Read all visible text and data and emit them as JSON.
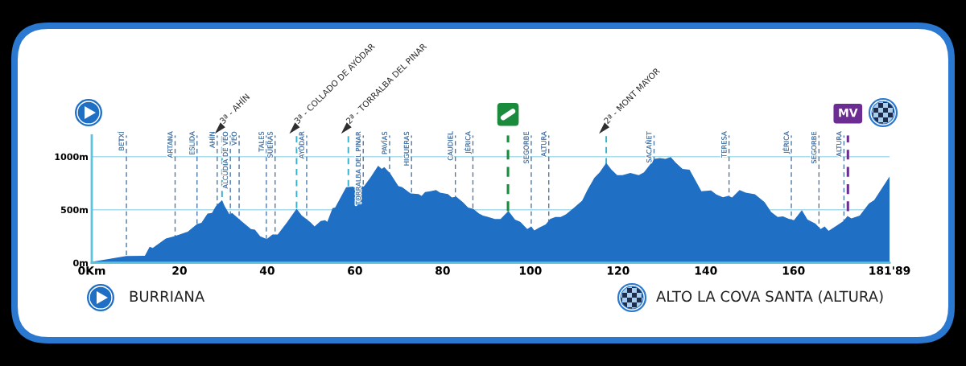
{
  "chart_data": {
    "type": "area",
    "color": "#1f6fc5",
    "x": [
      0,
      7.9,
      12.1,
      13.2,
      13.9,
      16.9,
      18.8,
      21.9,
      24.0,
      25.0,
      26.4,
      27.4,
      28.3,
      29.7,
      30.3,
      31.4,
      32.0,
      34.1,
      36.3,
      37.2,
      38.4,
      39.9,
      41.2,
      42.4,
      44.5,
      46.7,
      47.9,
      49.1,
      49.9,
      50.8,
      52.2,
      53.2,
      53.7,
      54.9,
      55.5,
      58.0,
      59.5,
      60.1,
      61.0,
      62.0,
      63.5,
      65.3,
      66.1,
      66.7,
      68.1,
      69.9,
      70.8,
      72.7,
      74.5,
      75.2,
      76.0,
      77.2,
      78.5,
      79.4,
      81.2,
      82.1,
      83.1,
      84.6,
      85.8,
      87.0,
      88.3,
      89.2,
      90.4,
      91.9,
      93.2,
      95.0,
      96.5,
      97.7,
      99.3,
      100.2,
      100.9,
      102.0,
      103.5,
      104.5,
      105.7,
      106.9,
      108.1,
      110.0,
      111.8,
      113.0,
      114.6,
      115.8,
      117.3,
      118.5,
      119.8,
      121.0,
      122.8,
      124.7,
      125.9,
      128.3,
      129.5,
      130.8,
      132.0,
      133.2,
      134.7,
      136.3,
      139.0,
      141.2,
      142.4,
      143.9,
      145.1,
      146.0,
      147.7,
      149.1,
      151.2,
      153.4,
      154.9,
      156.4,
      157.6,
      158.9,
      160.1,
      161.9,
      163.2,
      165.0,
      166.2,
      167.1,
      168.0,
      169.9,
      171.4,
      172.3,
      173.2,
      175.1,
      177.2,
      178.4,
      181.89
    ],
    "values": [
      10,
      64,
      66,
      152,
      140,
      229,
      249,
      293,
      366,
      376,
      463,
      470,
      534,
      590,
      534,
      457,
      470,
      394,
      318,
      313,
      249,
      224,
      267,
      267,
      381,
      510,
      445,
      407,
      381,
      343,
      394,
      402,
      386,
      514,
      521,
      712,
      717,
      707,
      729,
      717,
      800,
      915,
      884,
      902,
      838,
      724,
      712,
      653,
      648,
      630,
      666,
      674,
      686,
      661,
      648,
      615,
      623,
      572,
      521,
      508,
      463,
      445,
      432,
      412,
      412,
      488,
      407,
      386,
      318,
      343,
      305,
      331,
      361,
      412,
      432,
      432,
      457,
      521,
      585,
      686,
      800,
      851,
      941,
      877,
      826,
      826,
      846,
      826,
      851,
      979,
      986,
      979,
      996,
      941,
      884,
      877,
      674,
      681,
      643,
      617,
      630,
      615,
      686,
      661,
      646,
      572,
      478,
      432,
      437,
      415,
      402,
      495,
      407,
      369,
      318,
      343,
      300,
      351,
      394,
      440,
      419,
      445,
      559,
      590,
      813
    ],
    "xlim": [
      0,
      181.89
    ],
    "ylim": [
      0,
      1200
    ],
    "xticks": [
      {
        "value": 0,
        "label": "0Km"
      },
      20,
      40,
      60,
      80,
      100,
      120,
      140,
      160,
      {
        "value": 181.89,
        "label": "181'89"
      }
    ],
    "yticks": [
      {
        "value": 0,
        "label": "0m"
      },
      {
        "value": 500,
        "label": "500m"
      },
      {
        "value": 1000,
        "label": "1000m"
      }
    ],
    "grid": "y",
    "ref_lines": [
      {
        "axis": "x",
        "value": 7.9,
        "label": "BETXÍ",
        "color": "#4d79a8",
        "line_style": "dashed"
      },
      {
        "axis": "x",
        "value": 19.0,
        "label": "ARTANA",
        "color": "#4d79a8",
        "line_style": "dashed"
      },
      {
        "axis": "x",
        "value": 24.0,
        "label": "ESLIDA",
        "color": "#4d79a8",
        "line_style": "dashed"
      },
      {
        "axis": "x",
        "value": 28.6,
        "label": "AHÍN",
        "color": "#4d79a8",
        "line_style": "dashed"
      },
      {
        "axis": "x",
        "value": 29.7,
        "label": "3ª - AHÍN",
        "color": "#38b2c9",
        "line_style": "dashed"
      },
      {
        "axis": "x",
        "value": 31.6,
        "label": "ALCUDIA DE VEO",
        "color": "#4d79a8",
        "line_style": "dashed"
      },
      {
        "axis": "x",
        "value": 33.6,
        "label": "VEO",
        "color": "#4d79a8",
        "line_style": "dashed"
      },
      {
        "axis": "x",
        "value": 39.8,
        "label": "TALES",
        "color": "#4d79a8",
        "line_style": "dashed"
      },
      {
        "axis": "x",
        "value": 41.8,
        "label": "SUERAS",
        "color": "#4d79a8",
        "line_style": "dashed"
      },
      {
        "axis": "x",
        "value": 46.7,
        "label": "3ª - COLLADO DE AYÓDAR",
        "color": "#38b2c9",
        "line_style": "dashed"
      },
      {
        "axis": "x",
        "value": 49.0,
        "label": "AYÓDAR",
        "color": "#4d79a8",
        "line_style": "dashed"
      },
      {
        "axis": "x",
        "value": 58.5,
        "label": "2ª - TORRALBA DEL PINAR",
        "color": "#38b2c9",
        "line_style": "dashed"
      },
      {
        "axis": "x",
        "value": 61.9,
        "label": "TORRALBA DEL PINAR",
        "color": "#4d79a8",
        "line_style": "dashed"
      },
      {
        "axis": "x",
        "value": 67.9,
        "label": "PAVÍAS",
        "color": "#4d79a8",
        "line_style": "dashed"
      },
      {
        "axis": "x",
        "value": 72.9,
        "label": "HIGUERAS",
        "color": "#4d79a8",
        "line_style": "dashed"
      },
      {
        "axis": "x",
        "value": 82.9,
        "label": "CAUDIEL",
        "color": "#4d79a8",
        "line_style": "dashed"
      },
      {
        "axis": "x",
        "value": 86.9,
        "label": "JÉRICA",
        "color": "#4d79a8",
        "line_style": "dashed"
      },
      {
        "axis": "x",
        "value": 94.9,
        "color": "#1a8a3c",
        "line_style": "dashed"
      },
      {
        "axis": "x",
        "value": 100.2,
        "label": "SEGORBE",
        "color": "#4d79a8",
        "line_style": "dashed"
      },
      {
        "axis": "x",
        "value": 104.2,
        "label": "ALTURA",
        "color": "#4d79a8",
        "line_style": "dashed"
      },
      {
        "axis": "x",
        "value": 117.3,
        "label": "2ª - MONT MAYOR",
        "color": "#38b2c9",
        "line_style": "dashed"
      },
      {
        "axis": "x",
        "value": 128.2,
        "label": "SACAÑET",
        "color": "#4d79a8",
        "line_style": "dashed"
      },
      {
        "axis": "x",
        "value": 145.3,
        "label": "TERESA",
        "color": "#4d79a8",
        "line_style": "dashed"
      },
      {
        "axis": "x",
        "value": 159.5,
        "label": "JÉRICA",
        "color": "#4d79a8",
        "line_style": "dashed"
      },
      {
        "axis": "x",
        "value": 165.8,
        "label": "SEGORBE",
        "color": "#4d79a8",
        "line_style": "dashed"
      },
      {
        "axis": "x",
        "value": 171.5,
        "label": "ALTURA",
        "color": "#4d79a8",
        "line_style": "dashed"
      },
      {
        "axis": "x",
        "value": 172.4,
        "label": "MV",
        "color": "#6b2d91",
        "line_style": "dashed"
      }
    ],
    "annotations": [
      "BURRIANA",
      "ALTO LA COVA SANTA (ALTURA)"
    ]
  }
}
